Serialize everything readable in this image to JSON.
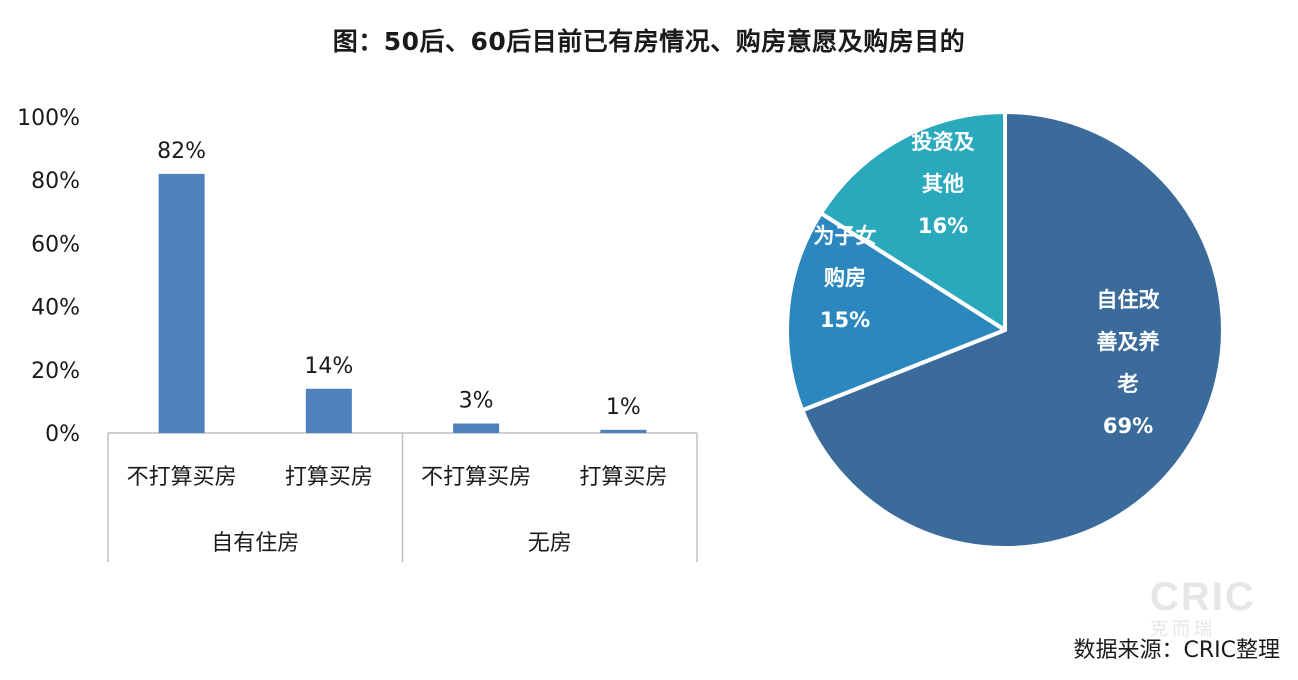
{
  "title": "图：50后、60后目前已有房情况、购房意愿及购房目的",
  "source": "数据来源：CRIC整理",
  "watermark": {
    "main": "CRIC",
    "sub": "克而瑞"
  },
  "colors": {
    "bar": "#4f81bd",
    "axis": "#bfbfbf",
    "pie_border": "#ffffff"
  },
  "chart_data": [
    {
      "type": "bar",
      "ylim": [
        0,
        100
      ],
      "y_ticks": [
        "0%",
        "20%",
        "40%",
        "60%",
        "80%",
        "100%"
      ],
      "y_tick_values": [
        0,
        20,
        40,
        60,
        80,
        100
      ],
      "grid": false,
      "categories": [
        "不打算买房",
        "打算买房",
        "不打算买房",
        "打算买房"
      ],
      "groups": [
        {
          "name": "自有住房",
          "span": 2
        },
        {
          "name": "无房",
          "span": 2
        }
      ],
      "values": [
        82,
        14,
        3,
        1
      ],
      "data_labels": [
        "82%",
        "14%",
        "3%",
        "1%"
      ]
    },
    {
      "type": "pie",
      "slices": [
        {
          "label": "自住改善及养老",
          "lines": [
            "自住改",
            "善及养",
            "老"
          ],
          "value": 69,
          "pct_text": "69%",
          "color": "#3a6b9a"
        },
        {
          "label": "为子女购房",
          "lines": [
            "为子女",
            "购房"
          ],
          "value": 15,
          "pct_text": "15%",
          "color": "#2b87bd"
        },
        {
          "label": "投资及其他",
          "lines": [
            "投资及",
            "其他"
          ],
          "value": 16,
          "pct_text": "16%",
          "color": "#2aa9bd"
        }
      ]
    }
  ]
}
